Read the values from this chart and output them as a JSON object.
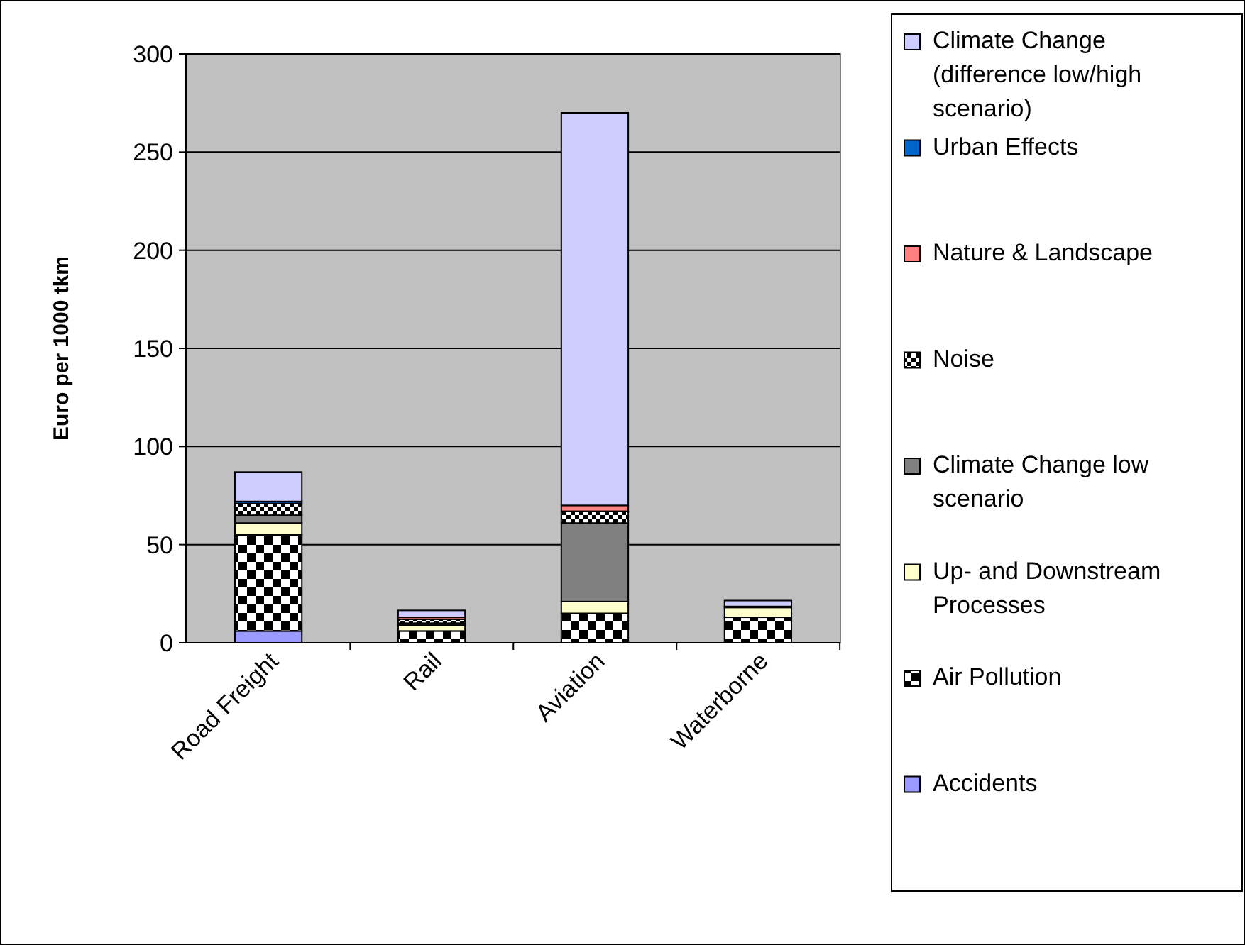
{
  "chart_data": {
    "type": "bar",
    "stacked": true,
    "ylabel": "Euro per 1000 tkm",
    "categories": [
      "Road Freight",
      "Rail",
      "Aviation",
      "Waterborne"
    ],
    "ylim": [
      0,
      300
    ],
    "yticks": [
      0,
      50,
      100,
      150,
      200,
      250,
      300
    ],
    "grid": "y",
    "legend": "right",
    "series": [
      {
        "name": "Accidents",
        "color": "#9999ff",
        "values": [
          6,
          0,
          0,
          0
        ]
      },
      {
        "name": "Air Pollution",
        "color": "#000000",
        "values": [
          49,
          6,
          15,
          13
        ]
      },
      {
        "name": "Up- and Downstream Processes",
        "color": "#ffffcc",
        "values": [
          6,
          3,
          6,
          5
        ]
      },
      {
        "name": "Climate Change low scenario",
        "color": "#808080",
        "values": [
          4,
          1,
          40,
          null
        ]
      },
      {
        "name": "Noise",
        "color": "#000000",
        "values": [
          6,
          2,
          6,
          0
        ]
      },
      {
        "name": "Nature & Landscape",
        "color": "#ff8080",
        "values": [
          null,
          1,
          3,
          0.5
        ]
      },
      {
        "name": "Urban Effects",
        "color": "#0066cc",
        "values": [
          1,
          null,
          null,
          0
        ]
      },
      {
        "name": "Climate Change (difference low/high scenario)",
        "color": "#ccccff",
        "values": [
          15,
          3.5,
          200,
          3
        ]
      }
    ]
  }
}
